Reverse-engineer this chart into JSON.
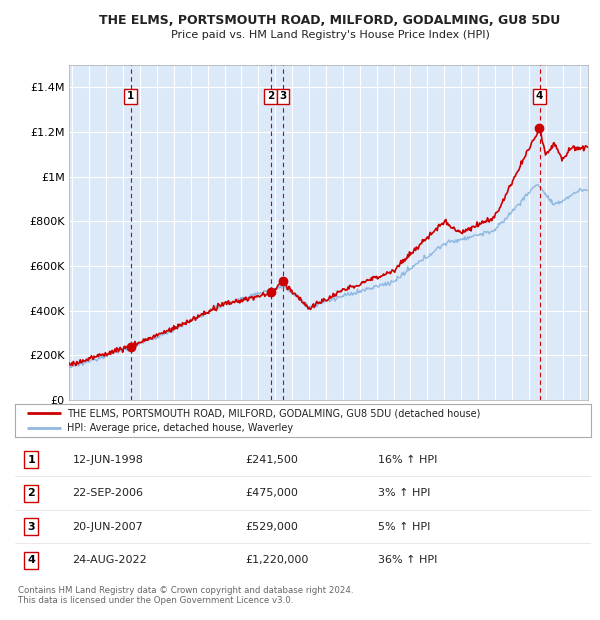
{
  "title": "THE ELMS, PORTSMOUTH ROAD, MILFORD, GODALMING, GU8 5DU",
  "subtitle": "Price paid vs. HM Land Registry's House Price Index (HPI)",
  "background_color": "#ffffff",
  "plot_bg_color": "#dce9f8",
  "grid_color": "#ffffff",
  "hpi_color": "#90b8e0",
  "price_color": "#cc0000",
  "ylim": [
    0,
    1500000
  ],
  "yticks": [
    0,
    200000,
    400000,
    600000,
    800000,
    1000000,
    1200000,
    1400000
  ],
  "ytick_labels": [
    "£0",
    "£200K",
    "£400K",
    "£600K",
    "£800K",
    "£1M",
    "£1.2M",
    "£1.4M"
  ],
  "transactions": [
    {
      "num": 1,
      "date_label": "12-JUN-1998",
      "price": 241500,
      "price_str": "£241,500",
      "pct": "16%",
      "year": 1998.44
    },
    {
      "num": 2,
      "date_label": "22-SEP-2006",
      "price": 475000,
      "price_str": "£475,000",
      "pct": "3%",
      "year": 2006.72
    },
    {
      "num": 3,
      "date_label": "20-JUN-2007",
      "price": 529000,
      "price_str": "£529,000",
      "pct": "5%",
      "year": 2007.47
    },
    {
      "num": 4,
      "date_label": "24-AUG-2022",
      "price": 1220000,
      "price_str": "£1,220,000",
      "pct": "36%",
      "year": 2022.64
    }
  ],
  "legend_label_red": "THE ELMS, PORTSMOUTH ROAD, MILFORD, GODALMING, GU8 5DU (detached house)",
  "legend_label_blue": "HPI: Average price, detached house, Waverley",
  "footnote": "Contains HM Land Registry data © Crown copyright and database right 2024.\nThis data is licensed under the Open Government Licence v3.0.",
  "xmin": 1994.8,
  "xmax": 2025.5
}
